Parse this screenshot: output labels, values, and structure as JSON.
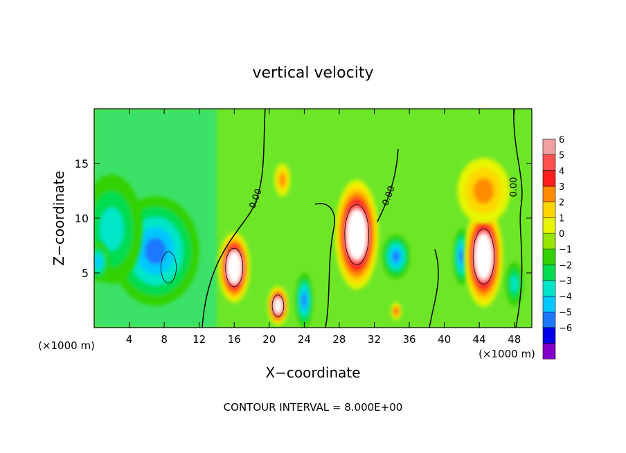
{
  "chart_data": {
    "type": "heatmap",
    "title": "vertical velocity",
    "xlabel": "X−coordinate",
    "ylabel": "Z−coordinate",
    "x_unit_left": "(×1000 m)",
    "x_unit_right": "(×1000 m)",
    "xlim": [
      0,
      50
    ],
    "ylim": [
      0,
      20
    ],
    "x_ticks": [
      4,
      8,
      12,
      16,
      20,
      24,
      28,
      32,
      36,
      40,
      44,
      48
    ],
    "y_ticks": [
      5,
      10,
      15
    ],
    "colorbar_levels": [
      6,
      5,
      4,
      3,
      2,
      1,
      0,
      -1,
      -2,
      -3,
      -4,
      -5,
      -6
    ],
    "colorbar_colors": [
      "#f0a0a0",
      "#ff5050",
      "#ff1e1e",
      "#ff8c00",
      "#ffd700",
      "#e6f500",
      "#96e600",
      "#32d200",
      "#00dc50",
      "#00e6c8",
      "#00c8ff",
      "#1e78ff",
      "#0000e6",
      "#8200c8"
    ],
    "contour_label": "0.00",
    "footer": "CONTOUR INTERVAL = 8.000E+00",
    "features": [
      {
        "kind": "updraft",
        "x": 8.5,
        "z": 5.5,
        "rx": 1.6,
        "rz": 2.6,
        "peak": -9
      },
      {
        "kind": "updraft",
        "x": 7.0,
        "z": 7.0,
        "rx": 5.0,
        "rz": 5.0,
        "peak": -5
      },
      {
        "kind": "updraft",
        "x": 2.0,
        "z": 9.0,
        "rx": 3.5,
        "rz": 5.0,
        "peak": -2.5
      },
      {
        "kind": "updraft",
        "x": 0.5,
        "z": 6.0,
        "rx": 1.2,
        "rz": 1.8,
        "peak": -4
      },
      {
        "kind": "downdraft",
        "x": 16.0,
        "z": 5.5,
        "rx": 1.8,
        "rz": 3.2,
        "peak": 9
      },
      {
        "kind": "downdraft",
        "x": 21.0,
        "z": 2.0,
        "rx": 1.2,
        "rz": 1.8,
        "peak": 8
      },
      {
        "kind": "downdraft",
        "x": 21.5,
        "z": 13.5,
        "rx": 0.9,
        "rz": 1.5,
        "peak": 3
      },
      {
        "kind": "updraft",
        "x": 24.0,
        "z": 2.5,
        "rx": 1.0,
        "rz": 2.5,
        "peak": -5
      },
      {
        "kind": "downdraft",
        "x": 30.0,
        "z": 8.5,
        "rx": 2.5,
        "rz": 5.0,
        "peak": 9
      },
      {
        "kind": "downdraft",
        "x": 34.5,
        "z": 1.5,
        "rx": 0.6,
        "rz": 0.8,
        "peak": 4
      },
      {
        "kind": "updraft",
        "x": 34.5,
        "z": 6.5,
        "rx": 1.6,
        "rz": 2.0,
        "peak": -4.5
      },
      {
        "kind": "updraft",
        "x": 42.0,
        "z": 6.5,
        "rx": 1.0,
        "rz": 2.6,
        "peak": -5
      },
      {
        "kind": "downdraft",
        "x": 44.5,
        "z": 6.5,
        "rx": 2.2,
        "rz": 4.6,
        "peak": 9
      },
      {
        "kind": "downdraft",
        "x": 44.5,
        "z": 12.5,
        "rx": 3.0,
        "rz": 3.0,
        "peak": 3
      },
      {
        "kind": "updraft",
        "x": 48.0,
        "z": 4.0,
        "rx": 1.0,
        "rz": 2.0,
        "peak": -3
      }
    ]
  }
}
